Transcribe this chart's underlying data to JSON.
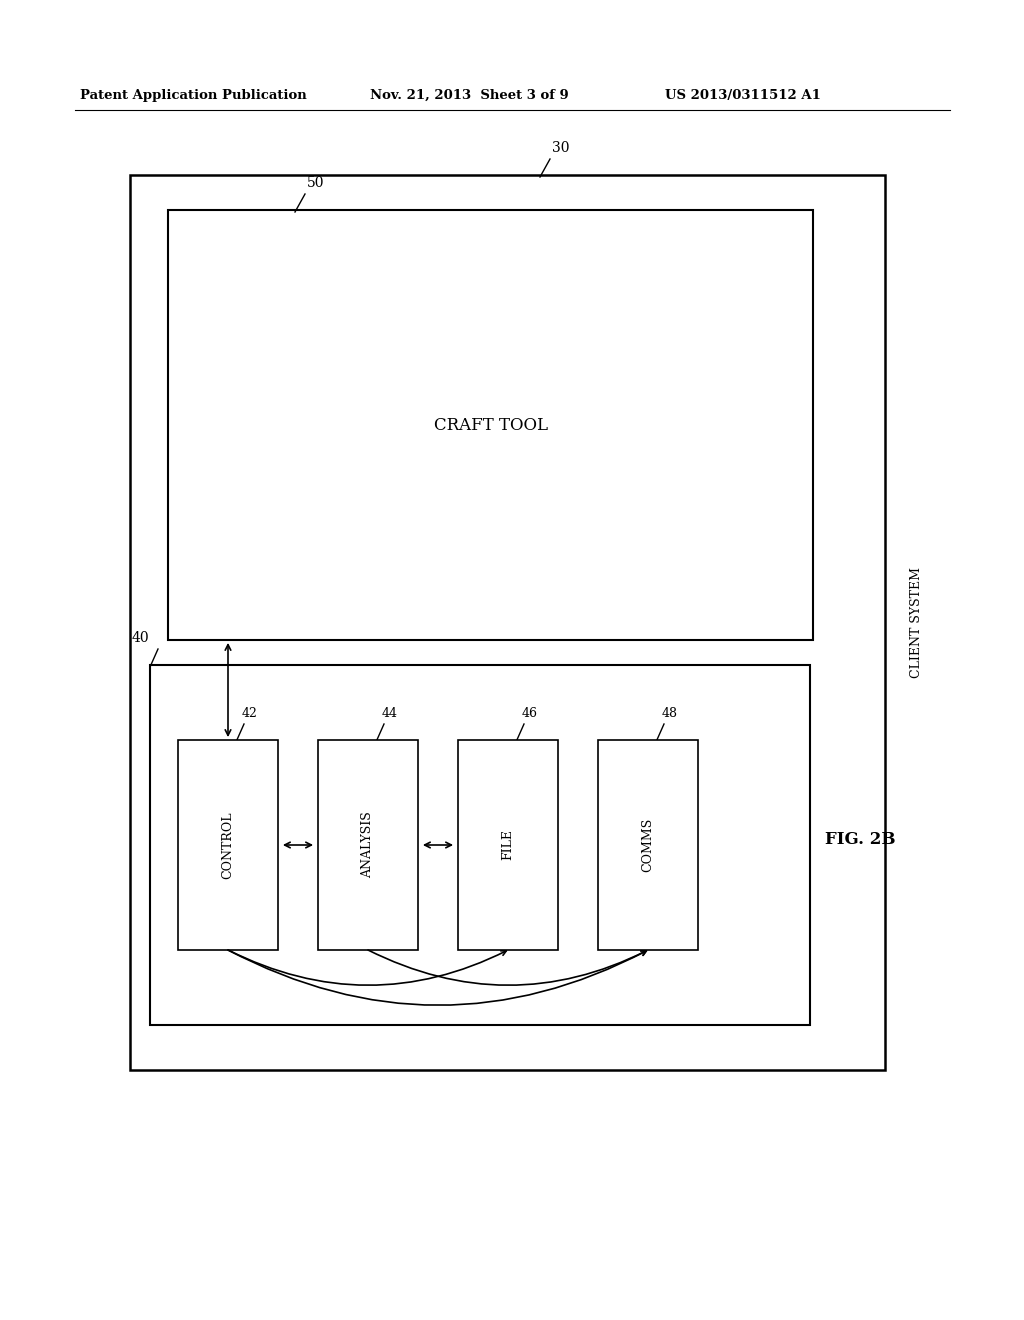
{
  "bg_color": "#ffffff",
  "header_left": "Patent Application Publication",
  "header_mid": "Nov. 21, 2013  Sheet 3 of 9",
  "header_right": "US 2013/0311512 A1",
  "fig_label": "FIG. 2B",
  "outer_box_label": "30",
  "client_system_label": "CLIENT SYSTEM",
  "craft_box_label": "50",
  "craft_tool_label": "CRAFT TOOL",
  "lower_box_label": "40",
  "boxes": [
    {
      "label": "CONTROL",
      "num": "42"
    },
    {
      "label": "ANALYSIS",
      "num": "44"
    },
    {
      "label": "FILE",
      "num": "46"
    },
    {
      "label": "COMMS",
      "num": "48"
    }
  ]
}
